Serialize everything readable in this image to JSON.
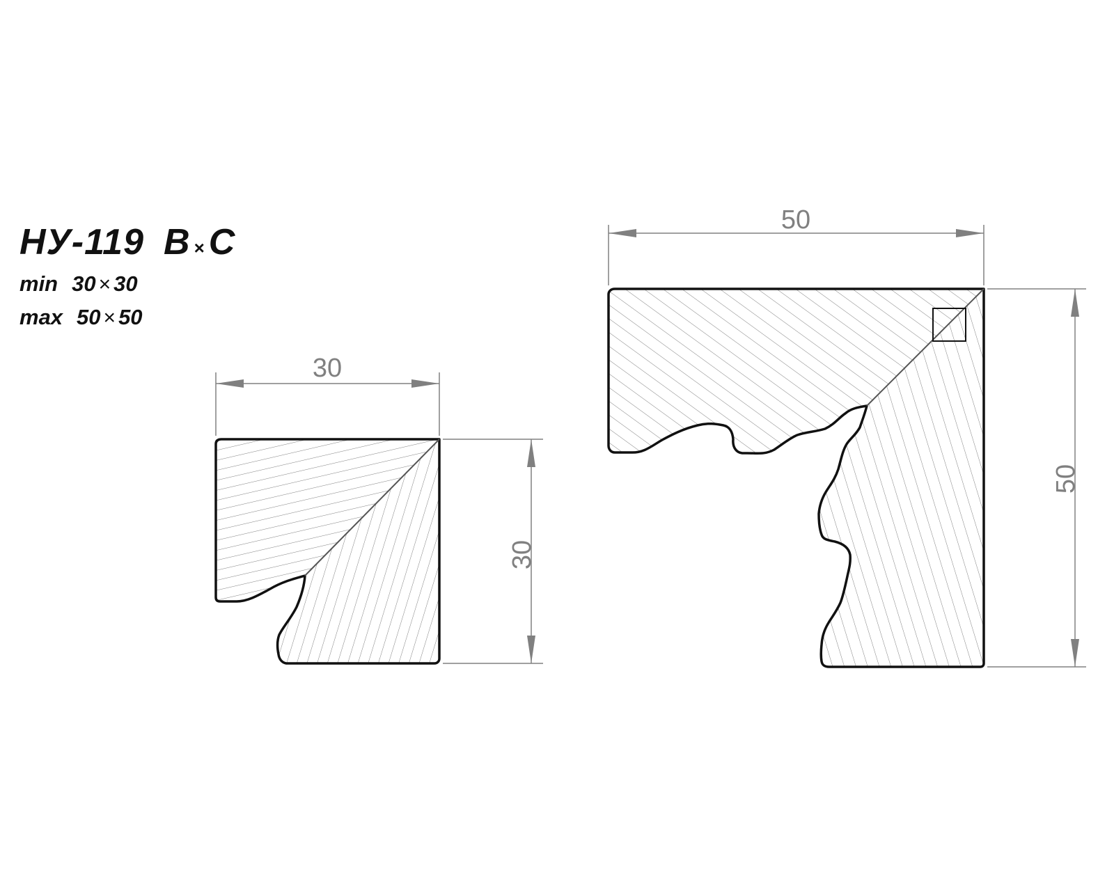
{
  "title": {
    "code": "НУ-119",
    "b": "B",
    "times": "×",
    "c": "C"
  },
  "sizes": {
    "min": {
      "label": "min",
      "w": "30",
      "times": "×",
      "h": "30"
    },
    "max": {
      "label": "max",
      "w": "50",
      "times": "×",
      "h": "50"
    }
  },
  "profiles": {
    "small": {
      "width_label": "30",
      "height_label": "30"
    },
    "large": {
      "width_label": "50",
      "height_label": "50"
    }
  },
  "colors": {
    "outline": "#111111",
    "hatch": "#808080",
    "dimension": "#808080"
  }
}
